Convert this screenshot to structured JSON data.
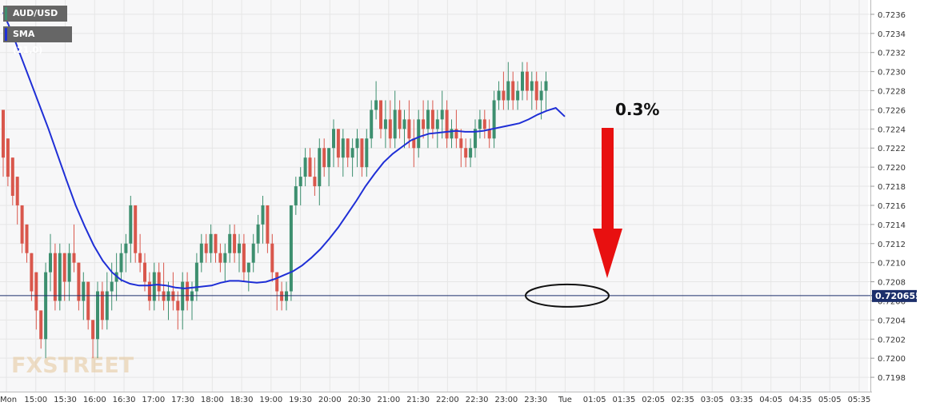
{
  "chart_data": {
    "type": "candlestick",
    "symbol": "AUD/USD",
    "indicator": "SMA (21,0)",
    "current_price": "0.720655",
    "annotation_text": "0.3%",
    "watermark": "FXSTREET",
    "ylim": [
      0.71965,
      0.72375
    ],
    "y_ticks": [
      "0.7236",
      "0.7234",
      "0.7232",
      "0.7230",
      "0.7228",
      "0.7226",
      "0.7224",
      "0.7222",
      "0.7220",
      "0.7218",
      "0.7216",
      "0.7214",
      "0.7212",
      "0.7210",
      "0.7208",
      "0.7206",
      "0.7204",
      "0.7202",
      "0.7200",
      "0.7198"
    ],
    "x_ticks": [
      "Mon",
      "15:00",
      "15:30",
      "16:00",
      "16:30",
      "17:00",
      "17:30",
      "18:00",
      "18:30",
      "19:00",
      "19:30",
      "20:00",
      "20:30",
      "21:00",
      "21:30",
      "22:00",
      "22:30",
      "23:00",
      "23:30",
      "Tue",
      "01:05",
      "01:35",
      "02:05",
      "02:35",
      "03:05",
      "03:35",
      "04:05",
      "04:35",
      "05:05",
      "05:35"
    ],
    "colors": {
      "up": "#3d8f6f",
      "down": "#d9574c",
      "sma": "#1f2fd6",
      "arrow": "#e81010",
      "price_line": "#1c2f6b",
      "grid": "#e6e6e6"
    },
    "candles": [
      [
        0.7226,
        0.7226,
        0.7219,
        0.7221
      ],
      [
        0.7223,
        0.7223,
        0.7218,
        0.7219
      ],
      [
        0.7221,
        0.7221,
        0.7216,
        0.7217
      ],
      [
        0.7219,
        0.7219,
        0.7214,
        0.7216
      ],
      [
        0.7216,
        0.7216,
        0.7211,
        0.7212
      ],
      [
        0.7214,
        0.7214,
        0.721,
        0.7211
      ],
      [
        0.7211,
        0.7211,
        0.7206,
        0.7207
      ],
      [
        0.7209,
        0.7209,
        0.7203,
        0.7205
      ],
      [
        0.7205,
        0.7205,
        0.7201,
        0.7202
      ],
      [
        0.7202,
        0.721,
        0.72,
        0.7209
      ],
      [
        0.7209,
        0.7213,
        0.7207,
        0.7211
      ],
      [
        0.7211,
        0.7212,
        0.7205,
        0.7206
      ],
      [
        0.7206,
        0.7212,
        0.7205,
        0.7211
      ],
      [
        0.7211,
        0.7211,
        0.7206,
        0.7208
      ],
      [
        0.7208,
        0.7212,
        0.7206,
        0.7211
      ],
      [
        0.7211,
        0.7214,
        0.7209,
        0.721
      ],
      [
        0.721,
        0.721,
        0.7205,
        0.7206
      ],
      [
        0.7206,
        0.7209,
        0.7204,
        0.7208
      ],
      [
        0.7208,
        0.7208,
        0.7203,
        0.7204
      ],
      [
        0.7204,
        0.7204,
        0.72,
        0.7202
      ],
      [
        0.7202,
        0.7208,
        0.72,
        0.7207
      ],
      [
        0.7207,
        0.7208,
        0.7203,
        0.7204
      ],
      [
        0.7204,
        0.7209,
        0.7203,
        0.7207
      ],
      [
        0.7207,
        0.721,
        0.7205,
        0.7208
      ],
      [
        0.7208,
        0.7211,
        0.7206,
        0.7209
      ],
      [
        0.7209,
        0.7212,
        0.7208,
        0.7211
      ],
      [
        0.7211,
        0.7213,
        0.7209,
        0.7212
      ],
      [
        0.7212,
        0.7217,
        0.721,
        0.7216
      ],
      [
        0.7216,
        0.7216,
        0.721,
        0.7211
      ],
      [
        0.7211,
        0.7213,
        0.7209,
        0.721
      ],
      [
        0.721,
        0.7211,
        0.7207,
        0.7208
      ],
      [
        0.7208,
        0.7209,
        0.7205,
        0.7206
      ],
      [
        0.7206,
        0.721,
        0.7205,
        0.7209
      ],
      [
        0.7209,
        0.721,
        0.7206,
        0.7207
      ],
      [
        0.7207,
        0.721,
        0.7205,
        0.7206
      ],
      [
        0.7206,
        0.7208,
        0.7204,
        0.7207
      ],
      [
        0.7207,
        0.7209,
        0.7205,
        0.7206
      ],
      [
        0.7206,
        0.7207,
        0.7203,
        0.7205
      ],
      [
        0.7205,
        0.7209,
        0.7203,
        0.7208
      ],
      [
        0.7208,
        0.7209,
        0.7205,
        0.7206
      ],
      [
        0.7206,
        0.7208,
        0.7204,
        0.7207
      ],
      [
        0.7207,
        0.7211,
        0.7206,
        0.721
      ],
      [
        0.721,
        0.7213,
        0.7209,
        0.7212
      ],
      [
        0.7212,
        0.7213,
        0.721,
        0.7211
      ],
      [
        0.7211,
        0.7214,
        0.721,
        0.7213
      ],
      [
        0.7213,
        0.7213,
        0.721,
        0.7211
      ],
      [
        0.7211,
        0.7212,
        0.7209,
        0.721
      ],
      [
        0.721,
        0.7212,
        0.7208,
        0.7211
      ],
      [
        0.7211,
        0.7214,
        0.721,
        0.7213
      ],
      [
        0.7213,
        0.7214,
        0.721,
        0.7211
      ],
      [
        0.7211,
        0.7213,
        0.7209,
        0.7212
      ],
      [
        0.7212,
        0.7213,
        0.7208,
        0.7209
      ],
      [
        0.7209,
        0.721,
        0.7207,
        0.721
      ],
      [
        0.721,
        0.7213,
        0.7209,
        0.7212
      ],
      [
        0.7212,
        0.7215,
        0.7211,
        0.7214
      ],
      [
        0.7214,
        0.7217,
        0.7212,
        0.7216
      ],
      [
        0.7216,
        0.7216,
        0.7211,
        0.7212
      ],
      [
        0.7212,
        0.7213,
        0.7208,
        0.7209
      ],
      [
        0.7209,
        0.7209,
        0.7205,
        0.7207
      ],
      [
        0.7207,
        0.7208,
        0.7205,
        0.7206
      ],
      [
        0.7206,
        0.7208,
        0.7205,
        0.7207
      ],
      [
        0.7207,
        0.7216,
        0.7206,
        0.7216
      ],
      [
        0.7216,
        0.7219,
        0.7215,
        0.7218
      ],
      [
        0.7218,
        0.722,
        0.7216,
        0.7219
      ],
      [
        0.7219,
        0.7222,
        0.7218,
        0.7221
      ],
      [
        0.7221,
        0.7222,
        0.7219,
        0.7219
      ],
      [
        0.7219,
        0.7221,
        0.7217,
        0.7218
      ],
      [
        0.7218,
        0.7223,
        0.7216,
        0.7222
      ],
      [
        0.7222,
        0.7223,
        0.7219,
        0.722
      ],
      [
        0.722,
        0.7222,
        0.7218,
        0.7222
      ],
      [
        0.7222,
        0.7225,
        0.722,
        0.7224
      ],
      [
        0.7224,
        0.7224,
        0.722,
        0.7221
      ],
      [
        0.7221,
        0.7224,
        0.7219,
        0.7223
      ],
      [
        0.7223,
        0.7223,
        0.722,
        0.7221
      ],
      [
        0.7221,
        0.7223,
        0.7219,
        0.7222
      ],
      [
        0.7222,
        0.7224,
        0.722,
        0.7223
      ],
      [
        0.7223,
        0.7223,
        0.7219,
        0.722
      ],
      [
        0.722,
        0.7224,
        0.7219,
        0.7223
      ],
      [
        0.7223,
        0.7227,
        0.7222,
        0.7226
      ],
      [
        0.7226,
        0.7229,
        0.7225,
        0.7227
      ],
      [
        0.7227,
        0.7227,
        0.7223,
        0.7224
      ],
      [
        0.7224,
        0.7227,
        0.7222,
        0.7225
      ],
      [
        0.7225,
        0.7227,
        0.7222,
        0.7223
      ],
      [
        0.7223,
        0.7228,
        0.7222,
        0.7226
      ],
      [
        0.7226,
        0.7227,
        0.7223,
        0.7224
      ],
      [
        0.7224,
        0.7226,
        0.7222,
        0.7225
      ],
      [
        0.7225,
        0.7227,
        0.7222,
        0.7223
      ],
      [
        0.7223,
        0.7225,
        0.722,
        0.7222
      ],
      [
        0.7222,
        0.7226,
        0.7221,
        0.7225
      ],
      [
        0.7225,
        0.7227,
        0.7223,
        0.7224
      ],
      [
        0.7224,
        0.7227,
        0.7222,
        0.7226
      ],
      [
        0.7226,
        0.7227,
        0.7223,
        0.7224
      ],
      [
        0.7224,
        0.7226,
        0.7222,
        0.7225
      ],
      [
        0.7225,
        0.7228,
        0.7223,
        0.7226
      ],
      [
        0.7226,
        0.7227,
        0.7222,
        0.7223
      ],
      [
        0.7223,
        0.7225,
        0.7222,
        0.7224
      ],
      [
        0.7224,
        0.7226,
        0.7222,
        0.7223
      ],
      [
        0.7223,
        0.7224,
        0.722,
        0.7222
      ],
      [
        0.7222,
        0.7223,
        0.722,
        0.7221
      ],
      [
        0.7221,
        0.7223,
        0.722,
        0.7222
      ],
      [
        0.7222,
        0.7225,
        0.7221,
        0.7224
      ],
      [
        0.7224,
        0.7226,
        0.7223,
        0.7225
      ],
      [
        0.7225,
        0.7226,
        0.7223,
        0.7224
      ],
      [
        0.7224,
        0.7225,
        0.7222,
        0.7223
      ],
      [
        0.7223,
        0.7228,
        0.7222,
        0.7227
      ],
      [
        0.7227,
        0.7229,
        0.7226,
        0.7228
      ],
      [
        0.7228,
        0.723,
        0.7226,
        0.7227
      ],
      [
        0.7227,
        0.7231,
        0.7226,
        0.7229
      ],
      [
        0.7229,
        0.723,
        0.7226,
        0.7227
      ],
      [
        0.7227,
        0.7229,
        0.7226,
        0.7228
      ],
      [
        0.7228,
        0.7231,
        0.7227,
        0.723
      ],
      [
        0.723,
        0.7231,
        0.7227,
        0.7228
      ],
      [
        0.7228,
        0.723,
        0.7226,
        0.7229
      ],
      [
        0.7229,
        0.723,
        0.7226,
        0.7227
      ],
      [
        0.7227,
        0.7229,
        0.7225,
        0.7228
      ],
      [
        0.7228,
        0.723,
        0.7226,
        0.7229
      ]
    ],
    "sma": [
      0.72362,
      0.7234,
      0.72315,
      0.7229,
      0.72265,
      0.7224,
      0.72213,
      0.72186,
      0.7216,
      0.72138,
      0.72118,
      0.72102,
      0.7209,
      0.72082,
      0.72078,
      0.72076,
      0.72076,
      0.72077,
      0.72076,
      0.72074,
      0.72073,
      0.72074,
      0.72075,
      0.72076,
      0.72079,
      0.72081,
      0.72081,
      0.7208,
      0.72079,
      0.7208,
      0.72083,
      0.72087,
      0.72091,
      0.72097,
      0.72105,
      0.72114,
      0.72125,
      0.72137,
      0.72151,
      0.72165,
      0.7218,
      0.72193,
      0.72205,
      0.72214,
      0.72221,
      0.72228,
      0.72232,
      0.72235,
      0.72236,
      0.72237,
      0.72238,
      0.72237,
      0.72237,
      0.72238,
      0.7224,
      0.72242,
      0.72244,
      0.72246,
      0.7225,
      0.72255,
      0.72259,
      0.72262,
      0.72253
    ]
  }
}
